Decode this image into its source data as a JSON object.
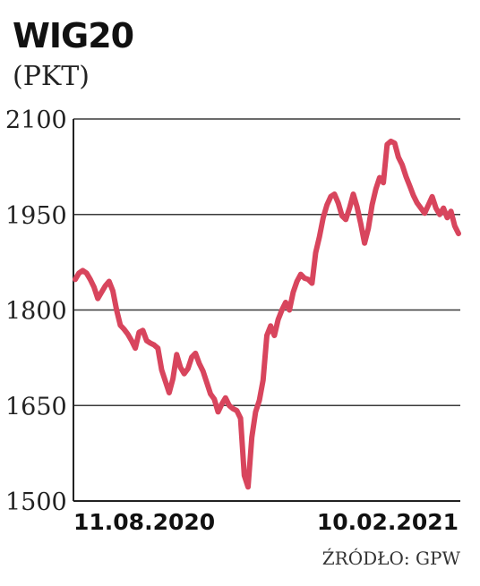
{
  "chart_data": {
    "type": "line",
    "title": "WIG20",
    "subtitle": "(PKT)",
    "source": "ŹRÓDŁO: GPW",
    "xlabel": "",
    "ylabel": "",
    "ylim": [
      1500,
      2100
    ],
    "yticks": [
      1500,
      1650,
      1800,
      1950,
      2100
    ],
    "grid": true,
    "x_tick_labels": [
      "11.08.2020",
      "10.02.2021"
    ],
    "line_color": "#d8455d",
    "series": [
      {
        "values": [
          1848,
          1858,
          1862,
          1858,
          1848,
          1836,
          1818,
          1828,
          1838,
          1845,
          1830,
          1800,
          1776,
          1770,
          1762,
          1752,
          1740,
          1765,
          1768,
          1752,
          1748,
          1745,
          1740,
          1706,
          1688,
          1670,
          1692,
          1730,
          1710,
          1700,
          1708,
          1726,
          1732,
          1716,
          1704,
          1686,
          1668,
          1660,
          1640,
          1652,
          1662,
          1650,
          1645,
          1642,
          1630,
          1540,
          1522,
          1600,
          1640,
          1658,
          1690,
          1760,
          1775,
          1760,
          1785,
          1800,
          1812,
          1800,
          1828,
          1845,
          1856,
          1850,
          1848,
          1842,
          1890,
          1915,
          1945,
          1965,
          1978,
          1982,
          1968,
          1948,
          1942,
          1960,
          1982,
          1962,
          1935,
          1905,
          1928,
          1965,
          1990,
          2008,
          2000,
          2060,
          2065,
          2062,
          2040,
          2028,
          2010,
          1995,
          1980,
          1968,
          1960,
          1952,
          1965,
          1978,
          1960,
          1950,
          1960,
          1945,
          1955,
          1932,
          1920
        ]
      }
    ]
  }
}
